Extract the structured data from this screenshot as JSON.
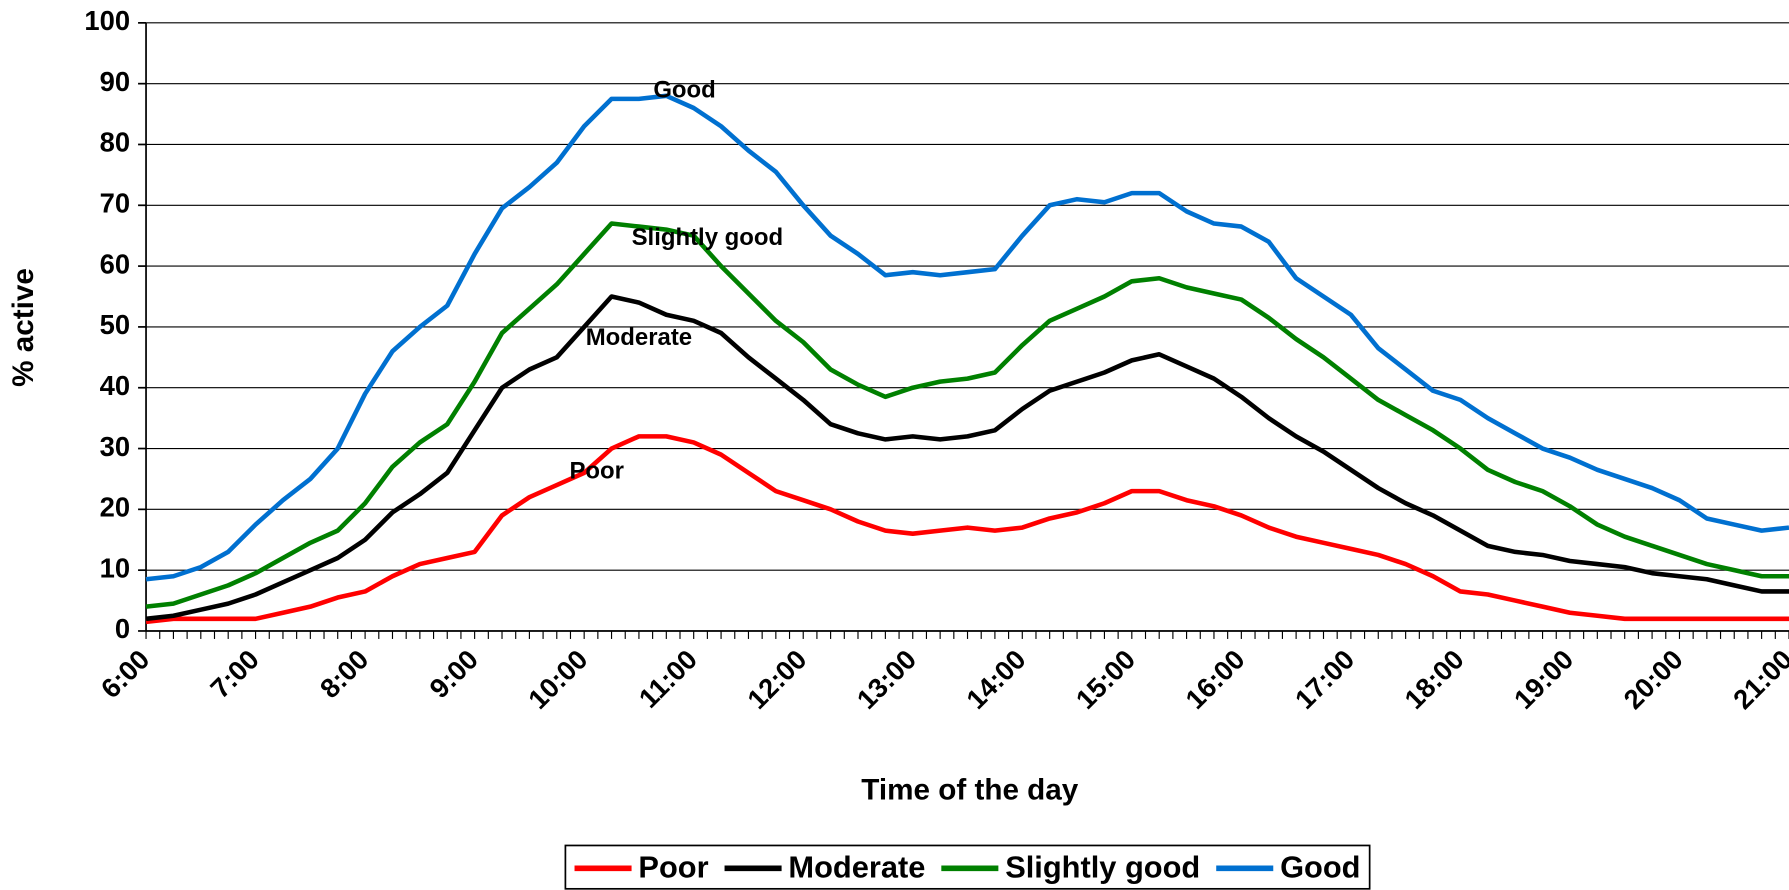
{
  "chart_data": {
    "type": "line",
    "x_label": "Time of the day",
    "y_label": "% active",
    "categories": [
      "6:00",
      null,
      null,
      null,
      "7:00",
      null,
      null,
      null,
      "8:00",
      null,
      null,
      null,
      "9:00",
      null,
      null,
      null,
      "10:00",
      null,
      null,
      null,
      "11:00",
      null,
      null,
      null,
      "12:00",
      null,
      null,
      null,
      "13:00",
      null,
      null,
      null,
      "14:00",
      null,
      null,
      null,
      "15:00",
      null,
      null,
      null,
      "16:00",
      null,
      null,
      null,
      "17:00",
      null,
      null,
      null,
      "18:00",
      null,
      null,
      null,
      "19:00",
      null,
      null,
      null,
      "20:00",
      null,
      null,
      null,
      "21:00"
    ],
    "series": [
      {
        "name": "Poor",
        "color": "#ff0000",
        "values": [
          1.5,
          2,
          2,
          2,
          2,
          3,
          4,
          5.5,
          6.5,
          9,
          11,
          12,
          13,
          19,
          22,
          24,
          26,
          30,
          32,
          32,
          31,
          29,
          26,
          23,
          21.5,
          20,
          18,
          16.5,
          16,
          16.5,
          17,
          16.5,
          17,
          18.5,
          19.5,
          21,
          23,
          23,
          21.5,
          20.5,
          19,
          17,
          15.5,
          14.5,
          13.5,
          12.5,
          11,
          9,
          6.5,
          6,
          5,
          4,
          3,
          2.5,
          2,
          2,
          2,
          2,
          2,
          2,
          2
        ]
      },
      {
        "name": "Moderate",
        "color": "#000000",
        "values": [
          2,
          2.5,
          3.5,
          4.5,
          6,
          8,
          10,
          12,
          15,
          19.5,
          22.5,
          26,
          33,
          40,
          43,
          45,
          50,
          55,
          54,
          52,
          51,
          49,
          45,
          41.5,
          38,
          34,
          32.5,
          31.5,
          32,
          31.5,
          32,
          33,
          36.5,
          39.5,
          41,
          42.5,
          44.5,
          45.5,
          43.5,
          41.5,
          38.5,
          35,
          32,
          29.5,
          26.5,
          23.5,
          21,
          19,
          16.5,
          14,
          13,
          12.5,
          11.5,
          11,
          10.5,
          9.5,
          9,
          8.5,
          7.5,
          6.5,
          6.5
        ]
      },
      {
        "name": "Slightly good",
        "color": "#008000",
        "values": [
          4,
          4.5,
          6,
          7.5,
          9.5,
          12,
          14.5,
          16.5,
          21,
          27,
          31,
          34,
          41,
          49,
          53,
          57,
          62,
          67,
          66.5,
          66,
          65,
          60,
          55.5,
          51,
          47.5,
          43,
          40.5,
          38.5,
          40,
          41,
          41.5,
          42.5,
          47,
          51,
          53,
          55,
          57.5,
          58,
          56.5,
          55.5,
          54.5,
          51.5,
          48,
          45,
          41.5,
          38,
          35.5,
          33,
          30,
          26.5,
          24.5,
          23,
          20.5,
          17.5,
          15.5,
          14,
          12.5,
          11,
          10,
          9,
          9
        ]
      },
      {
        "name": "Good",
        "color": "#0070d0",
        "values": [
          8.5,
          9,
          10.5,
          13,
          17.5,
          21.5,
          25,
          30,
          39,
          46,
          50,
          53.5,
          62,
          69.5,
          73,
          77,
          83,
          87.5,
          87.5,
          88,
          86,
          83,
          79,
          75.5,
          70,
          65,
          62,
          58.5,
          59,
          58.5,
          59,
          59.5,
          65,
          70,
          71,
          70.5,
          72,
          72,
          69,
          67,
          66.5,
          64,
          58,
          55,
          52,
          46.5,
          43,
          39.5,
          38,
          35,
          32.5,
          30,
          28.5,
          26.5,
          25,
          23.5,
          21.5,
          18.5,
          17.5,
          16.5,
          17
        ]
      }
    ],
    "annotations": [
      "Good",
      "Slightly good",
      "Moderate",
      "Poor"
    ],
    "ylim": [
      0,
      100
    ],
    "yticks": [
      0,
      10,
      20,
      30,
      40,
      50,
      60,
      70,
      80,
      90,
      100
    ],
    "grid": true,
    "legend": "bottom"
  }
}
